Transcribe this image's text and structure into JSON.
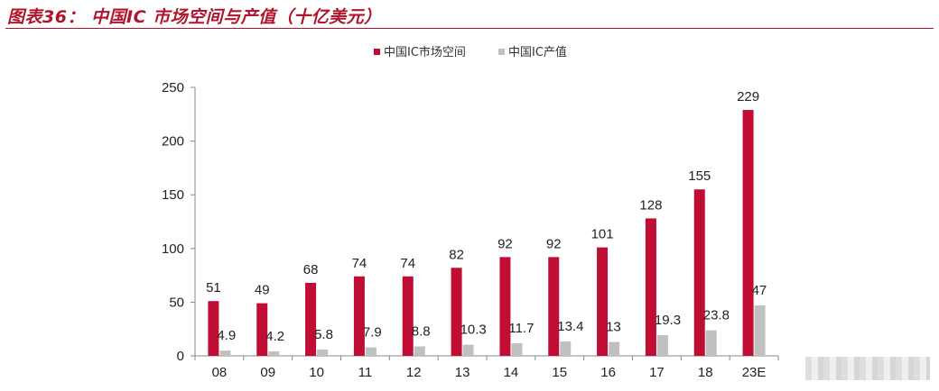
{
  "title": "图表36： 中国IC 市场空间与产值（十亿美元）",
  "colors": {
    "market": "#c00d34",
    "output": "#c0c0c0",
    "title": "#b0152b"
  },
  "chart_data": {
    "type": "bar",
    "categories": [
      "08",
      "09",
      "10",
      "11",
      "12",
      "13",
      "14",
      "15",
      "16",
      "17",
      "18",
      "23E"
    ],
    "series": [
      {
        "name": "中国IC市场空间",
        "values": [
          51,
          49,
          68,
          74,
          74,
          82,
          92,
          92,
          101,
          128,
          155,
          229
        ],
        "labels": [
          "51",
          "49",
          "68",
          "74",
          "74",
          "82",
          "92",
          "92",
          "101",
          "128",
          "155",
          "229"
        ]
      },
      {
        "name": "中国IC产值",
        "values": [
          4.9,
          4.2,
          5.8,
          7.9,
          8.8,
          10.3,
          11.7,
          13.4,
          13,
          19.3,
          23.8,
          47
        ],
        "labels": [
          "4.9",
          "4.2",
          "5.8",
          "7.9",
          "8.8",
          "10.3",
          "11.7",
          "13.4",
          "13",
          "19.3",
          "23.8",
          "47"
        ]
      }
    ],
    "ylim": [
      0,
      250
    ],
    "yticks": [
      0,
      50,
      100,
      150,
      200,
      250
    ],
    "legend_position": "top-center",
    "grid": false
  }
}
